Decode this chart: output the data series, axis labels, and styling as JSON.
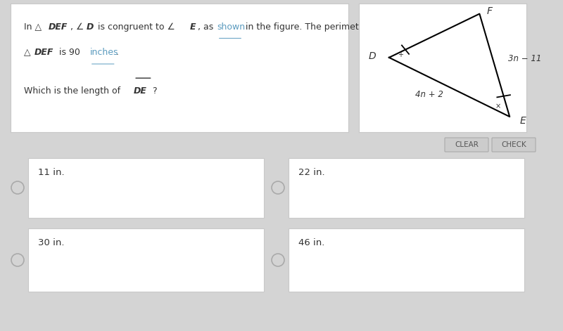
{
  "bg_color": "#d4d4d4",
  "panel_bg": "#ffffff",
  "panel_border": "#c8c8c8",
  "text_color": "#333333",
  "link_color": "#5b9bbf",
  "choices": [
    "11 in.",
    "22 in.",
    "30 in.",
    "46 in."
  ],
  "button_clear": "CLEAR",
  "button_check": "CHECK",
  "button_bg": "#cccccc",
  "button_border": "#bbbbbb",
  "triangle": {
    "D": [
      0.18,
      0.58
    ],
    "F": [
      0.72,
      0.92
    ],
    "E": [
      0.9,
      0.12
    ],
    "label_D": "D",
    "label_F": "F",
    "label_E": "E",
    "side_DE_label": "4n + 2",
    "side_EF_label": "3n − 11"
  },
  "fs_main": 9.0,
  "fs_choice": 9.5,
  "fs_tri_label": 10,
  "fs_tri_side": 8.5
}
